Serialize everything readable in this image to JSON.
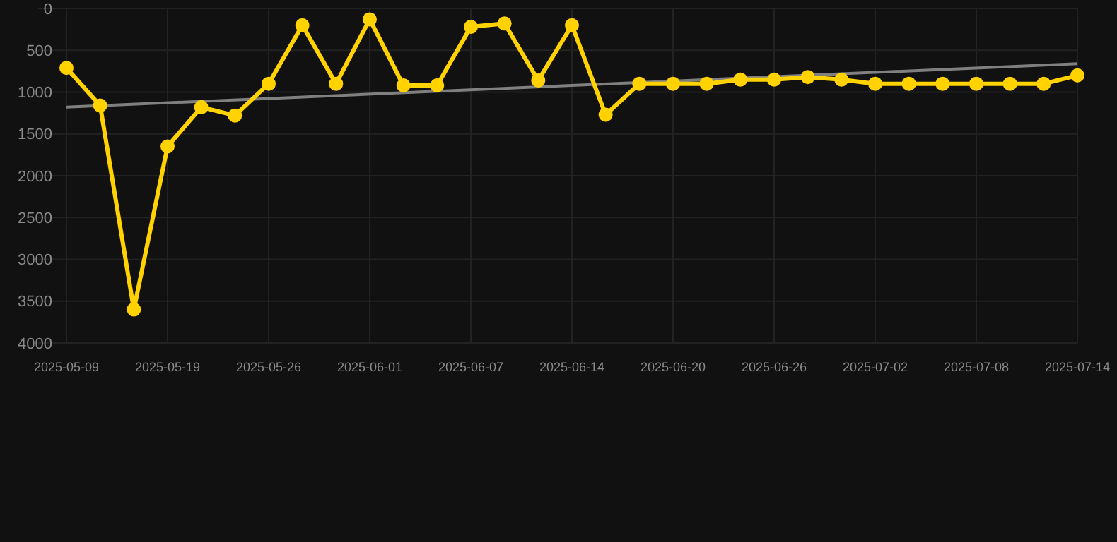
{
  "chart_data": {
    "type": "line",
    "categories": [
      "2025-05-09",
      null,
      null,
      "2025-05-19",
      null,
      null,
      "2025-05-26",
      null,
      null,
      "2025-06-01",
      null,
      null,
      "2025-06-07",
      null,
      null,
      "2025-06-14",
      null,
      null,
      "2025-06-20",
      null,
      null,
      "2025-06-26",
      null,
      null,
      "2025-07-02",
      null,
      null,
      "2025-07-08",
      null,
      null,
      "2025-07-14"
    ],
    "series": [
      {
        "color": "#ffd200",
        "marker": "circle",
        "values": [
          710,
          1160,
          3600,
          1650,
          1180,
          1280,
          900,
          200,
          900,
          130,
          920,
          920,
          220,
          180,
          860,
          200,
          1270,
          900,
          900,
          900,
          850,
          850,
          820,
          850,
          900,
          900,
          900,
          900,
          900,
          900,
          800
        ]
      },
      {
        "type": "line",
        "color": "#808080",
        "marker": "none",
        "values": [
          1180,
          null,
          null,
          null,
          null,
          null,
          null,
          null,
          null,
          null,
          null,
          null,
          null,
          null,
          null,
          null,
          null,
          null,
          null,
          null,
          null,
          null,
          null,
          null,
          null,
          null,
          null,
          null,
          null,
          null,
          660
        ]
      }
    ],
    "ylim": [
      4000,
      0
    ],
    "yticks": [
      0,
      500,
      1000,
      1500,
      2000,
      2500,
      3000,
      3500,
      4000
    ],
    "grid": true
  }
}
